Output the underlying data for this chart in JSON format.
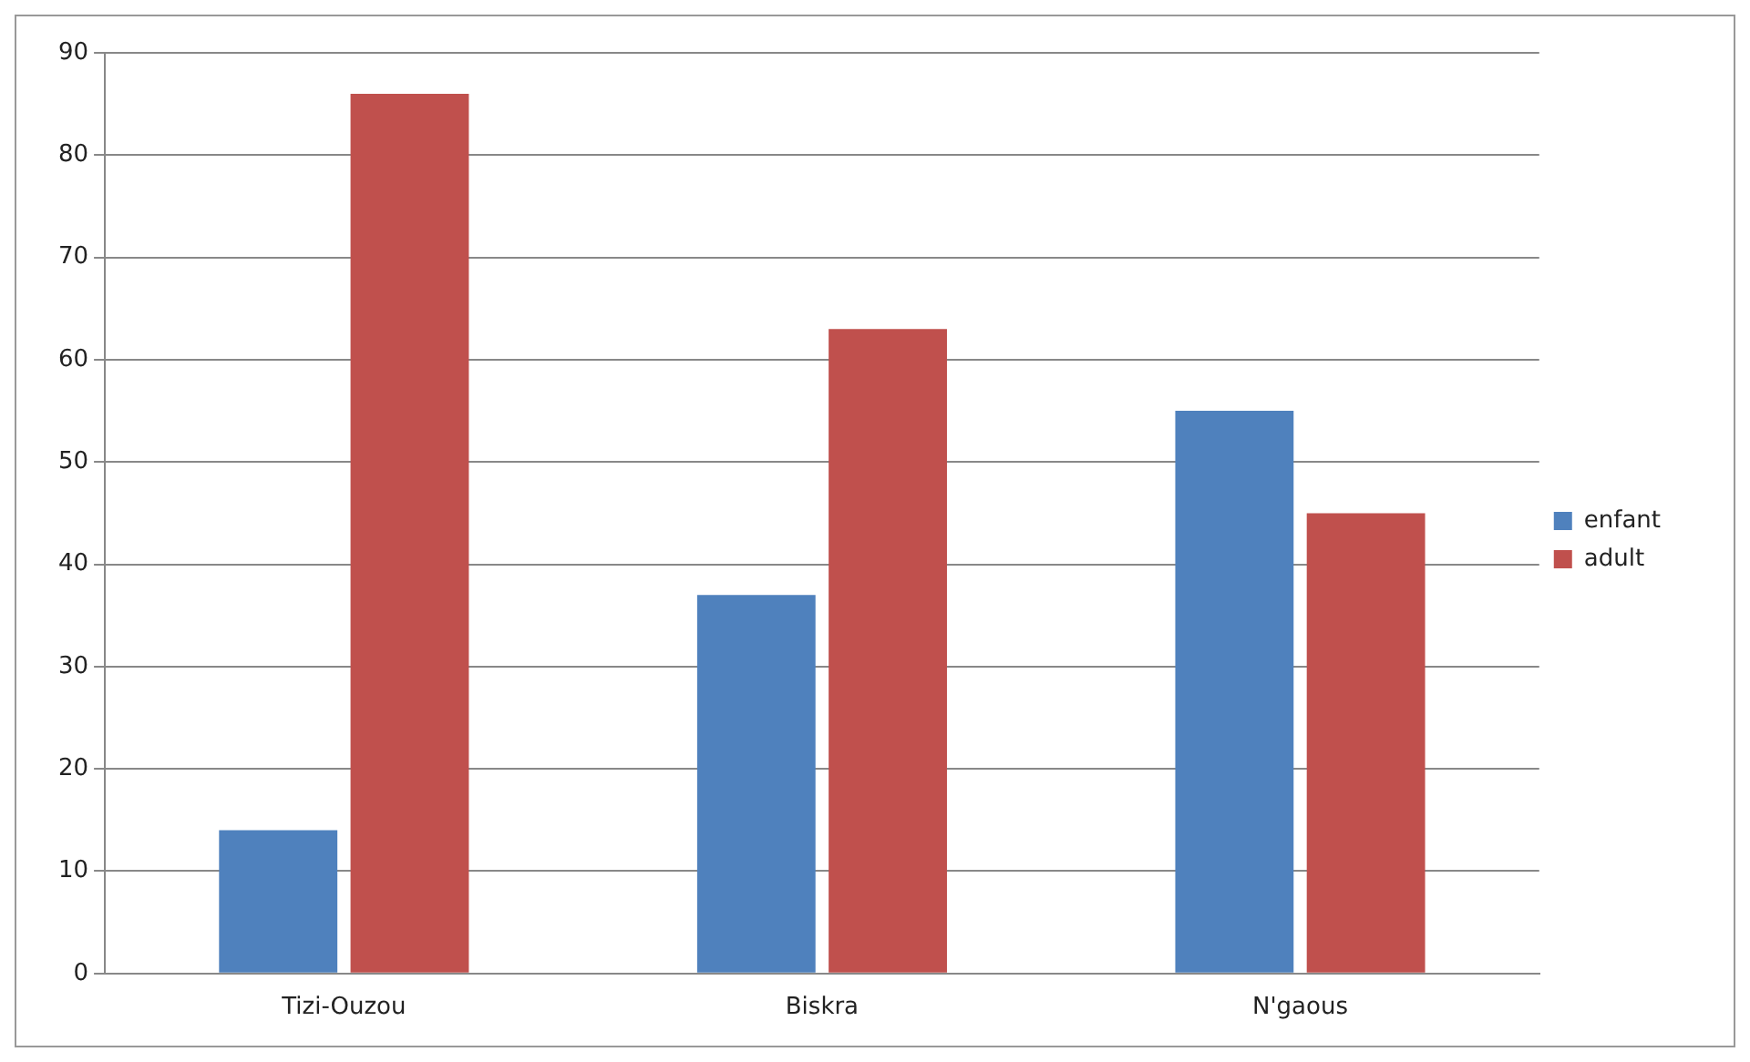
{
  "chart_data": {
    "type": "bar",
    "categories": [
      "Tizi-Ouzou",
      "Biskra",
      "N'gaous"
    ],
    "series": [
      {
        "name": "enfant",
        "color": "#4f81bd",
        "values": [
          14,
          37,
          55
        ]
      },
      {
        "name": "adult",
        "color": "#c0504d",
        "values": [
          86,
          63,
          45
        ]
      }
    ],
    "ylim": [
      0,
      90
    ],
    "yticks": [
      0,
      10,
      20,
      30,
      40,
      50,
      60,
      70,
      80,
      90
    ],
    "grid": "y",
    "legend": "right"
  }
}
